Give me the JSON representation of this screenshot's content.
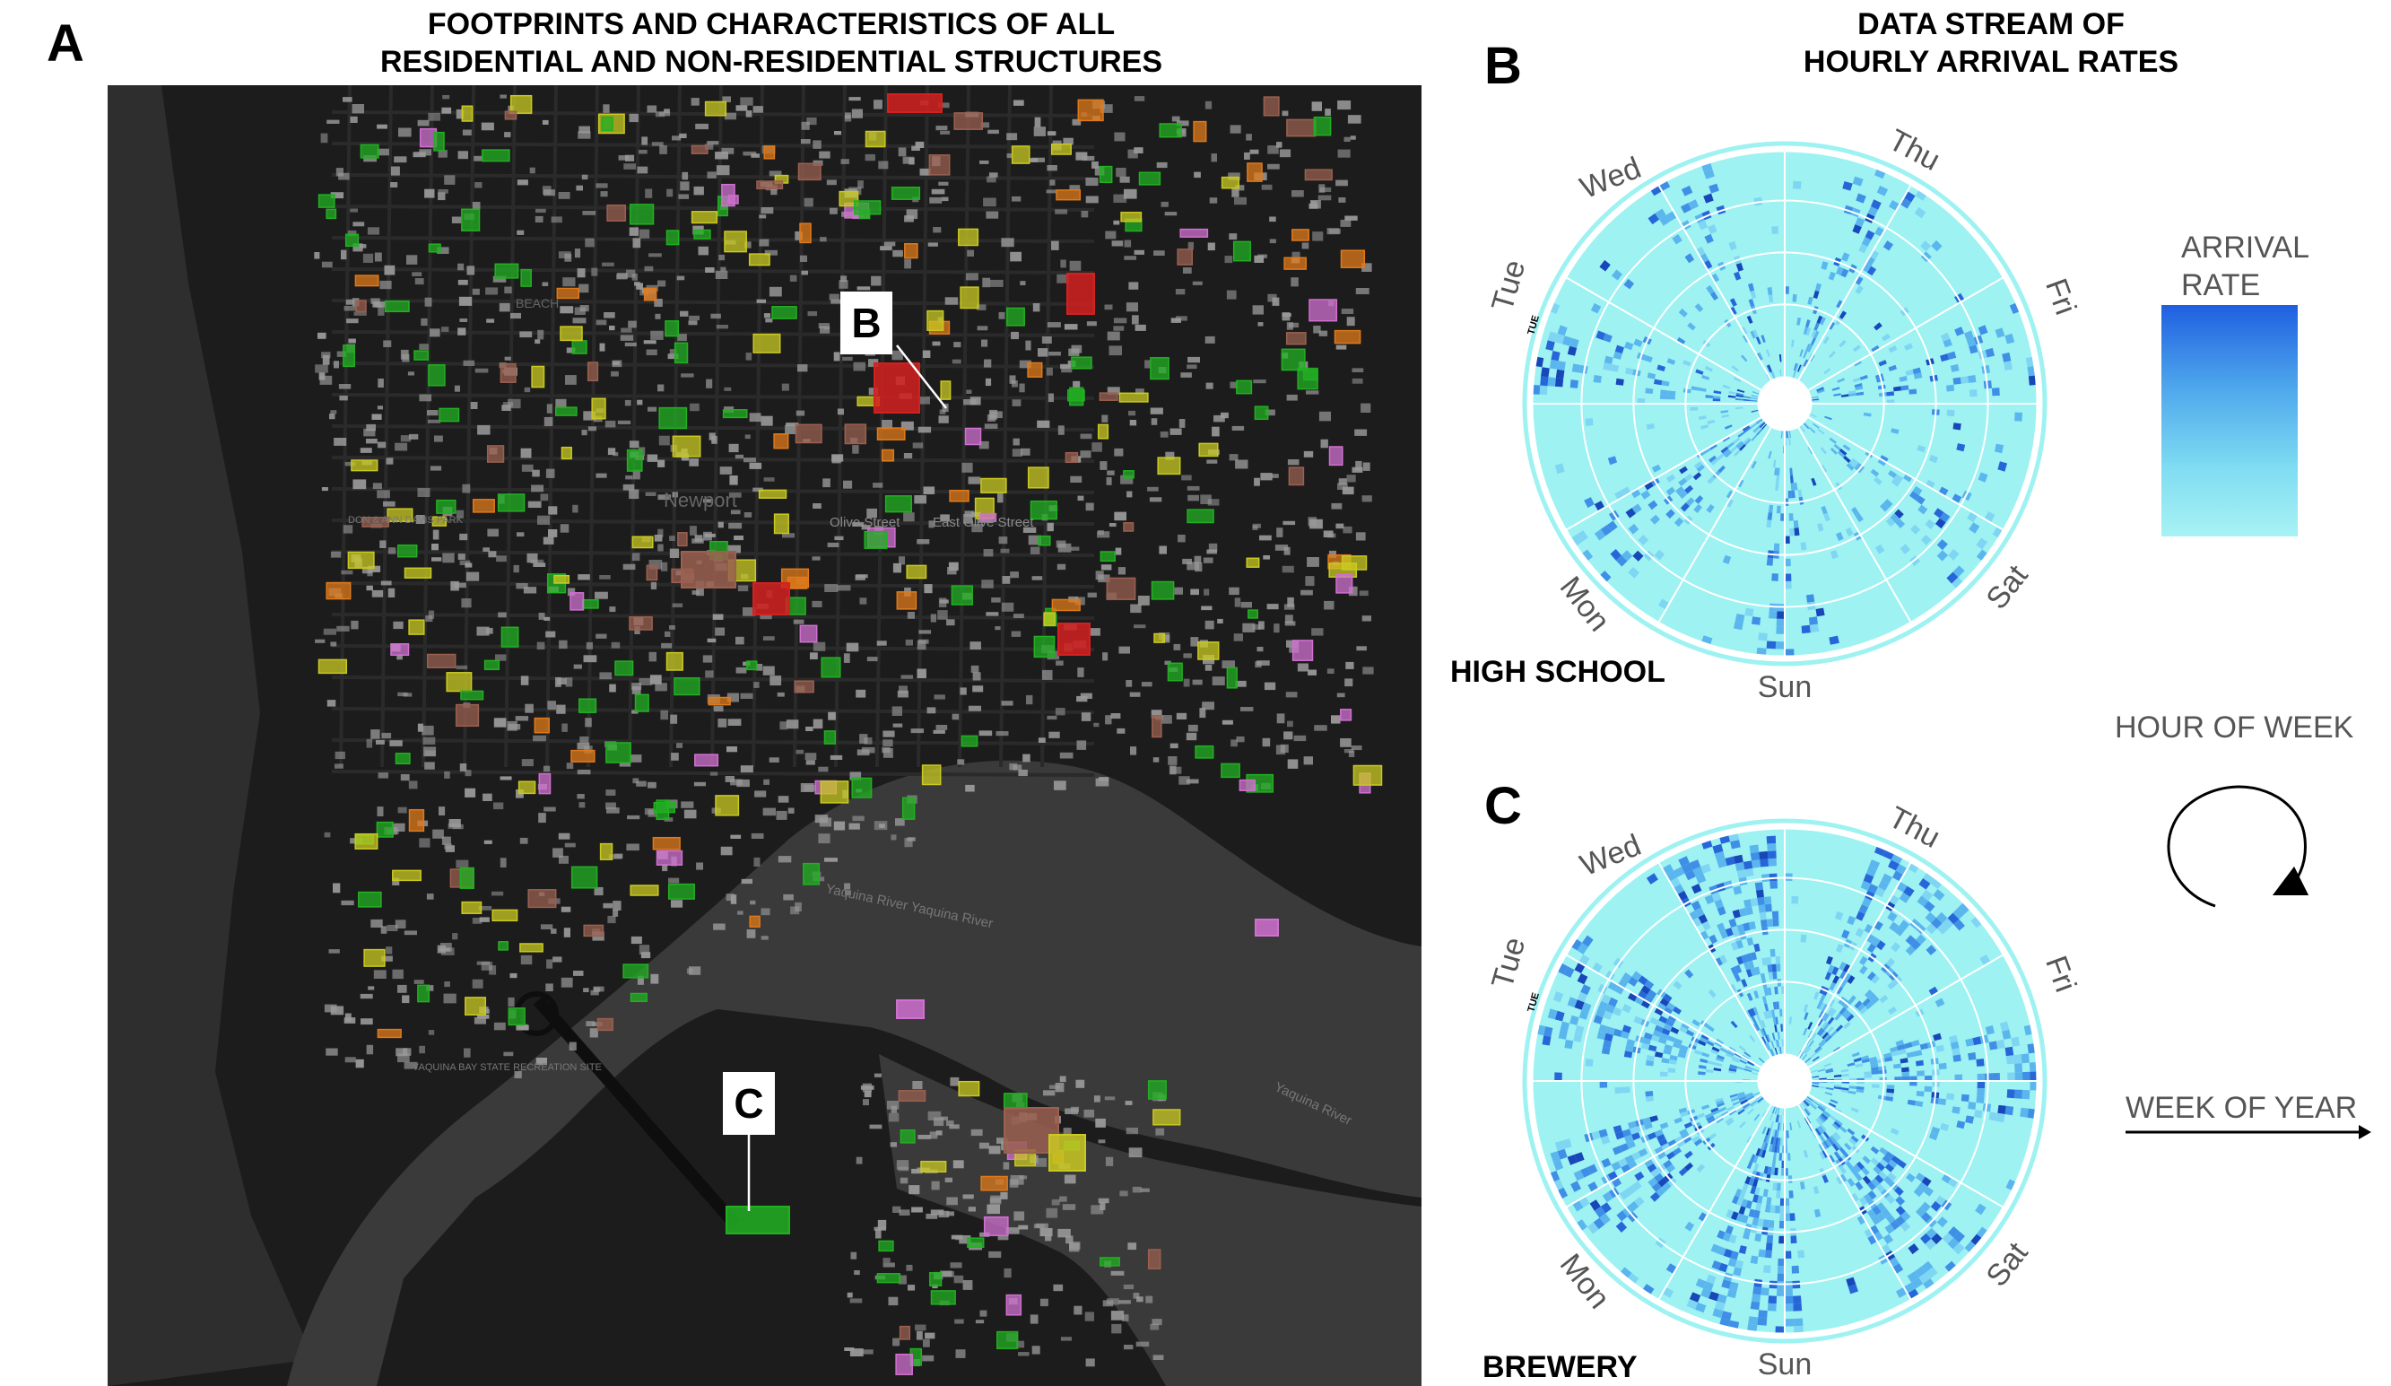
{
  "panel_a": {
    "letter": "A",
    "title_line1": "FOOTPRINTS AND CHARACTERISTICS OF ALL",
    "title_line2": "RESIDENTIAL AND NON-RESIDENTIAL STRUCTURES",
    "map_labels": {
      "olive_street": "Olive Street",
      "east_olive_street": "East Olive Street",
      "yaquina_river": "Yaquina River Yaquina River",
      "yaquina_river_2": "Yaquina River",
      "park": "DON & ANN DAVIS PARK",
      "recreation": "YAQUINA BAY STATE RECREATION SITE",
      "newport": "Newport",
      "beach": "BEACH"
    },
    "callout_b": "B",
    "callout_c": "C"
  },
  "panel_b": {
    "letter": "B",
    "title_line1": "DATA STREAM OF",
    "title_line2": "HOURLY ARRIVAL RATES",
    "site": "HIGH SCHOOL",
    "days": [
      "Wed",
      "Thu",
      "Fri",
      "Sat",
      "Sun",
      "Mon",
      "Tue"
    ],
    "small_tag": "TUE"
  },
  "panel_c": {
    "letter": "C",
    "site": "BREWERY",
    "days": [
      "Wed",
      "Thu",
      "Fri",
      "Sat",
      "Sun",
      "Mon",
      "Tue"
    ],
    "small_tag": "TUE"
  },
  "legend": {
    "arrival_rate_line1": "ARRIVAL",
    "arrival_rate_line2": "RATE",
    "gradient_colors": [
      "#1f5fe0",
      "#4da6ec",
      "#7fdcf2",
      "#a8f2f4"
    ],
    "hour_of_week": "HOUR OF WEEK",
    "week_of_year": "WEEK OF YEAR"
  },
  "colors": {
    "map_background": "#1c1c1c",
    "water": "#3a3a3a",
    "building_gray": "#9a9a9a",
    "green": "#22b022",
    "yellow": "#c9c922",
    "orange": "#e07a1a",
    "red": "#d42020",
    "pink": "#d070d0",
    "brown": "#9a6050",
    "radial_base": "#9ef2f2"
  }
}
